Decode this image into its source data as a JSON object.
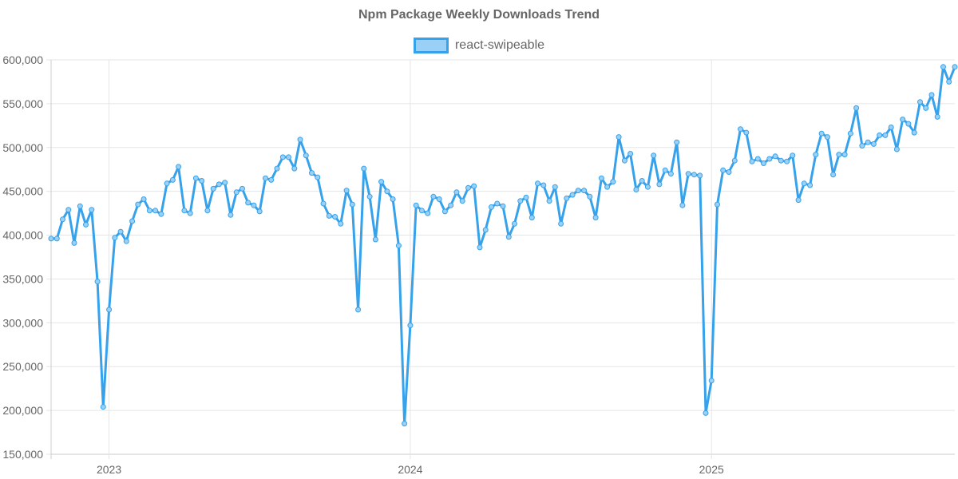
{
  "chart_data": {
    "type": "line",
    "title": "Npm Package Weekly Downloads Trend",
    "xlabel": "",
    "ylabel": "",
    "ylim": [
      150000,
      600000
    ],
    "y_ticks": [
      "600,000",
      "550,000",
      "500,000",
      "450,000",
      "400,000",
      "350,000",
      "300,000",
      "250,000",
      "200,000",
      "150,000"
    ],
    "x_ticks": [
      "2023",
      "2024",
      "2025"
    ],
    "grid": true,
    "legend": "top-center",
    "colors": {
      "line": "#36a2eb",
      "fill": "#9ad0f5",
      "grid": "#e5e5e5",
      "axis": "#cccccc"
    },
    "series": [
      {
        "name": "react-swipeable",
        "values": [
          396000,
          396000,
          418000,
          429000,
          391000,
          433000,
          412000,
          429000,
          347000,
          204000,
          315000,
          397000,
          404000,
          393000,
          416000,
          435000,
          441000,
          428000,
          428000,
          424000,
          459000,
          463000,
          478000,
          428000,
          425000,
          465000,
          462000,
          428000,
          453000,
          458000,
          460000,
          423000,
          449000,
          453000,
          437000,
          434000,
          427000,
          465000,
          463000,
          476000,
          489000,
          489000,
          476000,
          509000,
          491000,
          471000,
          466000,
          436000,
          422000,
          421000,
          413000,
          451000,
          435000,
          315000,
          476000,
          444000,
          395000,
          461000,
          450000,
          441000,
          388000,
          185000,
          297000,
          434000,
          428000,
          425000,
          444000,
          441000,
          427000,
          434000,
          449000,
          439000,
          454000,
          456000,
          386000,
          406000,
          432000,
          436000,
          433000,
          398000,
          413000,
          439000,
          443000,
          420000,
          459000,
          457000,
          439000,
          455000,
          413000,
          442000,
          446000,
          451000,
          451000,
          444000,
          420000,
          465000,
          455000,
          461000,
          512000,
          485000,
          493000,
          452000,
          462000,
          455000,
          491000,
          458000,
          474000,
          470000,
          506000,
          434000,
          470000,
          469000,
          468000,
          197000,
          234000,
          435000,
          474000,
          472000,
          485000,
          521000,
          517000,
          484000,
          487000,
          482000,
          487000,
          490000,
          485000,
          484000,
          491000,
          440000,
          459000,
          457000,
          492000,
          516000,
          512000,
          469000,
          492000,
          492000,
          516000,
          545000,
          502000,
          506000,
          504000,
          514000,
          514000,
          523000,
          498000,
          532000,
          527000,
          517000,
          552000,
          545000,
          560000,
          535000,
          592000,
          575000,
          592000
        ]
      }
    ]
  }
}
